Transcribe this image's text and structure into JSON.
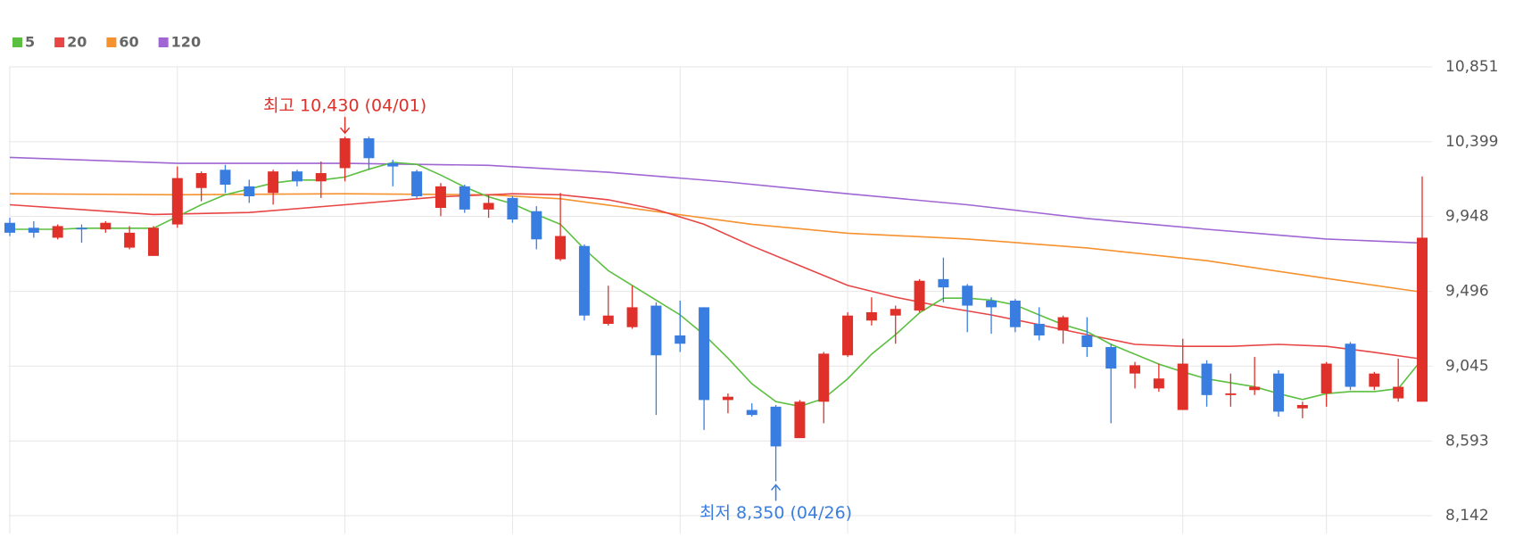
{
  "chart_data": {
    "type": "candlestick",
    "up_color": "#e0302a",
    "down_color": "#3a7de0",
    "open": [
      9910,
      9880,
      9820,
      9880,
      9870,
      9760,
      9710,
      9900,
      10120,
      10230,
      10130,
      10090,
      10220,
      10160,
      10240,
      10420,
      10270,
      10220,
      10000,
      10130,
      9990,
      10060,
      9980,
      9690,
      9770,
      9300,
      9280,
      9410,
      9230,
      9400,
      8840,
      8780,
      8800,
      8610,
      8830,
      9110,
      9320,
      9350,
      9380,
      9570,
      9530,
      9440,
      9440,
      9300,
      9260,
      9230,
      9160,
      9000,
      8910,
      8780,
      9060,
      8870,
      8900,
      9000,
      8790,
      8880,
      9180,
      8920,
      8850,
      8830
    ],
    "high": [
      9940,
      9920,
      9900,
      9900,
      9920,
      9890,
      9890,
      10250,
      10220,
      10260,
      10170,
      10230,
      10230,
      10280,
      10430,
      10430,
      10290,
      10230,
      10150,
      10140,
      10080,
      10070,
      10010,
      10090,
      9780,
      9530,
      9530,
      9430,
      9440,
      9400,
      8880,
      8820,
      8810,
      8840,
      9130,
      9370,
      9460,
      9410,
      9570,
      9700,
      9540,
      9460,
      9450,
      9400,
      9350,
      9340,
      9180,
      9070,
      9060,
      9210,
      9080,
      9000,
      9100,
      9020,
      8830,
      9070,
      9190,
      9010,
      9090,
      10190
    ],
    "low": [
      9830,
      9820,
      9810,
      9790,
      9850,
      9750,
      9710,
      9880,
      10040,
      10090,
      10030,
      10020,
      10130,
      10060,
      10160,
      10230,
      10130,
      10060,
      9950,
      9970,
      9940,
      9910,
      9750,
      9680,
      9320,
      9290,
      9270,
      8750,
      9130,
      8660,
      8760,
      8740,
      8350,
      8610,
      8700,
      9100,
      9290,
      9180,
      9370,
      9430,
      9250,
      9240,
      9250,
      9200,
      9180,
      9100,
      8700,
      8910,
      8890,
      8780,
      8800,
      8800,
      8870,
      8740,
      8730,
      8800,
      8900,
      8900,
      8830,
      8830
    ],
    "close": [
      9850,
      9850,
      9890,
      9870,
      9910,
      9850,
      9880,
      10180,
      10210,
      10140,
      10070,
      10220,
      10160,
      10210,
      10420,
      10300,
      10250,
      10070,
      10130,
      9990,
      10030,
      9930,
      9810,
      9830,
      9350,
      9350,
      9400,
      9110,
      9180,
      8840,
      8860,
      8750,
      8560,
      8830,
      9120,
      9350,
      9370,
      9390,
      9560,
      9520,
      9410,
      9400,
      9280,
      9230,
      9340,
      9160,
      9030,
      9050,
      8970,
      9060,
      8870,
      8880,
      8920,
      8770,
      8810,
      9060,
      8920,
      9000,
      8920,
      9820
    ],
    "series": [
      {
        "name": "5",
        "color": "#5bbf3f",
        "x": [
          0,
          1,
          2,
          3,
          4,
          5,
          6,
          7,
          8,
          9,
          10,
          11,
          12,
          13,
          14,
          15,
          16,
          17,
          18,
          19,
          20,
          21,
          22,
          23,
          24,
          25,
          26,
          27,
          28,
          29,
          30,
          31,
          32,
          33,
          34,
          35,
          36,
          37,
          38,
          39,
          40,
          41,
          42,
          43,
          44,
          45,
          46,
          47,
          48,
          49,
          50,
          51,
          52,
          53,
          54,
          55,
          56,
          57,
          58,
          59
        ],
        "values": [
          9871,
          9871,
          9871,
          9877,
          9877,
          9877,
          9877,
          9948,
          10019,
          10079,
          10114,
          10150,
          10168,
          10168,
          10186,
          10233,
          10275,
          10263,
          10198,
          10126,
          10067,
          10025,
          9960,
          9901,
          9752,
          9621,
          9532,
          9443,
          9354,
          9235,
          9093,
          8938,
          8831,
          8802,
          8849,
          8968,
          9117,
          9235,
          9366,
          9455,
          9455,
          9443,
          9414,
          9354,
          9295,
          9253,
          9176,
          9117,
          9057,
          9010,
          8968,
          8944,
          8920,
          8879,
          8843,
          8879,
          8891,
          8891,
          8909,
          9087
        ]
      },
      {
        "name": "20",
        "color": "#e84545",
        "x": [
          0,
          3,
          6,
          10,
          14,
          18,
          21,
          23,
          25,
          27,
          29,
          31,
          33,
          35,
          37,
          39,
          41,
          43,
          45,
          47,
          49,
          51,
          53,
          55,
          57,
          59
        ],
        "values": [
          10019,
          9990,
          9960,
          9972,
          10019,
          10067,
          10085,
          10079,
          10049,
          9990,
          9901,
          9770,
          9651,
          9532,
          9461,
          9402,
          9354,
          9295,
          9235,
          9176,
          9164,
          9164,
          9176,
          9164,
          9128,
          9087
        ]
      },
      {
        "name": "60",
        "color": "#f5922f",
        "x": [
          0,
          7,
          14,
          20,
          23,
          27,
          31,
          35,
          40,
          45,
          50,
          55,
          59
        ],
        "values": [
          10085,
          10079,
          10085,
          10079,
          10055,
          9978,
          9901,
          9847,
          9812,
          9758,
          9681,
          9574,
          9491
        ]
      },
      {
        "name": "120",
        "color": "#a066d3",
        "x": [
          0,
          7,
          14,
          20,
          25,
          30,
          35,
          40,
          45,
          50,
          55,
          59
        ],
        "values": [
          10305,
          10269,
          10269,
          10257,
          10215,
          10156,
          10085,
          10019,
          9936,
          9871,
          9812,
          9788
        ]
      }
    ],
    "ylim": [
      8142,
      10851
    ],
    "yticks": [
      {
        "value": 8142,
        "label": "8,142"
      },
      {
        "value": 8593,
        "label": "8,593"
      },
      {
        "value": 9045,
        "label": "9,045"
      },
      {
        "value": 9496,
        "label": "9,496"
      },
      {
        "value": 9948,
        "label": "9,948"
      },
      {
        "value": 10399,
        "label": "10,399"
      },
      {
        "value": 10851,
        "label": "10,851"
      }
    ],
    "grid": true,
    "annotations": {
      "high": "최고 10,430 (04/01)",
      "low": "최저 8,350 (04/26)"
    }
  }
}
